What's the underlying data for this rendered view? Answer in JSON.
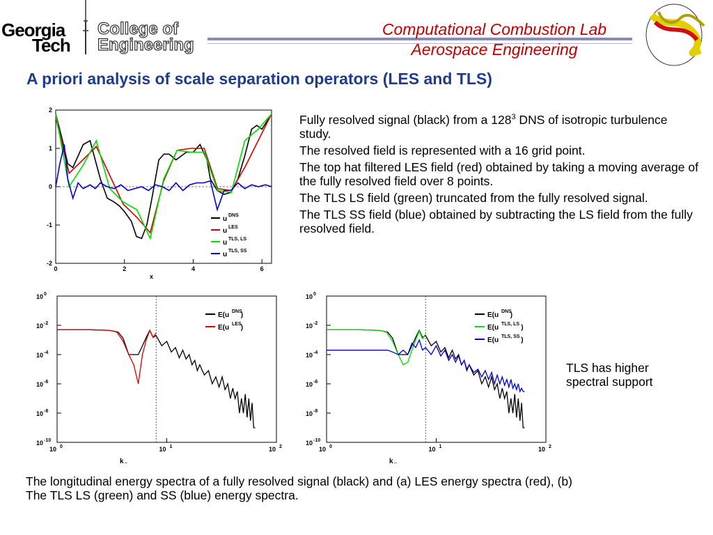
{
  "header": {
    "logo_line1": "Georgia",
    "logo_line2": "Tech",
    "college_line1": "College of",
    "college_line2": "Engineering",
    "lab_line1": "Computational Combustion Lab",
    "lab_line2": "Aerospace Engineering",
    "rule_color": "#8a8ab8"
  },
  "title": "A priori analysis of scale separation operators (LES and TLS)",
  "bullets": [
    {
      "pre": "Fully resolved signal (black) from a 128",
      "sup": "3",
      "post": " DNS of isotropic turbulence study."
    },
    {
      "text": "The resolved field is represented with a 16 grid point."
    },
    {
      "text": "The top hat filtered LES field (red) obtained by taking a moving average of the fully resolved field over 8 points."
    },
    {
      "text": "The TLS LS field (green) truncated from the fully resolved signal."
    },
    {
      "text": "The TLS SS field (blue) obtained by subtracting the LS field from the fully resolved field."
    }
  ],
  "side_note": "TLS has higher spectral support",
  "caption": "The longitudinal energy spectra of a fully resolved signal (black) and (a) LES energy spectra (red), (b) The TLS LS (green) and SS (blue) energy spectra.",
  "chart_data": [
    {
      "type": "line",
      "xlabel": "x",
      "ylabel": "",
      "xlim": [
        0,
        6.28
      ],
      "ylim": [
        -2,
        2
      ],
      "xticks": [
        "0",
        "2",
        "4",
        "6"
      ],
      "yticks": [
        "2",
        "1",
        "0",
        "-1",
        "-2"
      ],
      "legend_position": "bottom-right",
      "series": [
        {
          "name": "u",
          "sup": "DNS",
          "color": "#000000",
          "x": [
            0,
            0.2,
            0.35,
            0.5,
            0.65,
            0.8,
            1.0,
            1.15,
            1.3,
            1.5,
            1.7,
            1.85,
            2.0,
            2.2,
            2.35,
            2.5,
            2.65,
            2.8,
            3.0,
            3.15,
            3.3,
            3.5,
            3.65,
            3.8,
            4.0,
            4.2,
            4.4,
            4.5,
            4.7,
            4.9,
            5.1,
            5.3,
            5.5,
            5.7,
            5.85,
            6.0,
            6.28
          ],
          "y": [
            1.9,
            1.2,
            0.6,
            0.5,
            0.8,
            1.1,
            1.2,
            0.7,
            0.2,
            -0.3,
            -0.4,
            -0.5,
            -0.65,
            -0.9,
            -1.3,
            -1.35,
            -1.0,
            -0.3,
            0.7,
            0.85,
            0.85,
            0.7,
            0.8,
            0.9,
            0.9,
            1.1,
            0.7,
            0.2,
            -0.1,
            -0.2,
            -0.15,
            0.2,
            0.8,
            1.5,
            1.6,
            1.5,
            1.9
          ]
        },
        {
          "name": "u",
          "sup": "LES",
          "color": "#d40000",
          "x": [
            0,
            0.39,
            0.79,
            1.18,
            1.57,
            1.96,
            2.36,
            2.75,
            3.14,
            3.53,
            3.93,
            4.32,
            4.71,
            5.11,
            5.5,
            5.89,
            6.28
          ],
          "y": [
            1.8,
            0.35,
            0.7,
            1.05,
            0.3,
            -0.45,
            -0.8,
            -1.2,
            0.15,
            0.95,
            1.0,
            1.0,
            -0.05,
            -0.1,
            0.5,
            1.2,
            1.9
          ]
        },
        {
          "name": "u",
          "sup": "TLS, LS",
          "color": "#00dd00",
          "x": [
            0,
            0.39,
            0.79,
            1.18,
            1.57,
            1.96,
            2.36,
            2.75,
            3.14,
            3.53,
            3.93,
            4.32,
            4.71,
            5.11,
            5.5,
            5.89,
            6.28
          ],
          "y": [
            1.9,
            0.0,
            0.55,
            1.2,
            -0.05,
            -0.4,
            -0.6,
            -1.35,
            0.2,
            0.95,
            0.9,
            0.9,
            -0.1,
            -0.15,
            1.2,
            1.5,
            1.9
          ]
        },
        {
          "name": "u",
          "sup": "TLS, SS",
          "color": "#0000d0",
          "x": [
            0,
            0.12,
            0.25,
            0.35,
            0.5,
            0.65,
            0.8,
            1.0,
            1.15,
            1.3,
            1.5,
            1.7,
            1.9,
            2.1,
            2.3,
            2.5,
            2.7,
            2.9,
            3.1,
            3.3,
            3.5,
            3.7,
            3.9,
            4.1,
            4.3,
            4.5,
            4.7,
            4.9,
            5.1,
            5.3,
            5.5,
            5.7,
            5.9,
            6.1,
            6.28
          ],
          "y": [
            0.0,
            0.6,
            1.1,
            0.2,
            -0.3,
            0.1,
            -0.05,
            0.05,
            -0.05,
            0.1,
            0.0,
            -0.05,
            0.05,
            -0.1,
            -0.05,
            0.0,
            -0.1,
            0.05,
            0.0,
            -0.1,
            0.1,
            -0.1,
            0.05,
            0.1,
            0.1,
            0.15,
            -0.6,
            -0.1,
            -0.1,
            0.1,
            -0.05,
            0.05,
            0.0,
            0.05,
            0.0
          ]
        }
      ]
    },
    {
      "type": "line",
      "scale": "log-log",
      "xlabel": "k",
      "xlabel_sub": "x",
      "ylabel": "",
      "xlim": [
        1,
        100
      ],
      "ylim": [
        1e-10,
        1
      ],
      "vline": 8,
      "xticks": [
        {
          "b": "10",
          "e": "0"
        },
        {
          "b": "10",
          "e": "1"
        },
        {
          "b": "10",
          "e": "2"
        }
      ],
      "yticks": [
        {
          "b": "10",
          "e": "0"
        },
        {
          "b": "10",
          "e": "-2"
        },
        {
          "b": "10",
          "e": "-4"
        },
        {
          "b": "10",
          "e": "-6"
        },
        {
          "b": "10",
          "e": "-8"
        },
        {
          "b": "10",
          "e": "-10"
        }
      ],
      "legend_position": "top-right",
      "series": [
        {
          "name": "E(u",
          "sup": "DNS",
          "suffix": ")",
          "color": "#000000",
          "x": [
            1,
            2,
            3,
            3.6,
            4,
            4.5,
            5,
            5.5,
            6,
            6.5,
            7,
            7.5,
            8,
            9,
            10,
            11,
            12,
            13,
            14,
            15,
            16,
            17,
            18,
            19,
            20,
            22,
            24,
            26,
            28,
            30,
            32,
            34,
            36,
            38,
            40,
            42,
            44,
            46,
            48,
            50,
            52,
            54,
            56,
            58,
            60,
            62,
            64
          ],
          "y": [
            0.005,
            0.005,
            0.0045,
            0.0035,
            0.0013,
            0.0001,
            0.0001,
            0.0001,
            0.0004,
            0.0015,
            0.0045,
            0.0015,
            0.002,
            0.0004,
            0.0008,
            0.00015,
            0.0003,
            6e-05,
            0.0002,
            5e-05,
            0.0001,
            2e-05,
            4e-05,
            8e-06,
            2e-05,
            4e-06,
            8e-06,
            1e-06,
            3e-06,
            6e-07,
            3e-06,
            4e-07,
            1e-06,
            1e-07,
            5e-07,
            1e-07,
            3e-07,
            1e-08,
            1e-07,
            1e-08,
            2e-07,
            5e-09,
            1e-07,
            3e-09,
            5e-08,
            1e-09,
            1e-09
          ]
        },
        {
          "name": "E(u",
          "sup": "LES",
          "suffix": ")",
          "color": "#d40000",
          "x": [
            1,
            2,
            3,
            3.5,
            4,
            4.5,
            5,
            5.5,
            6,
            6.5,
            7,
            7.5,
            8
          ],
          "y": [
            0.005,
            0.005,
            0.0045,
            0.0035,
            0.0008,
            0.0001,
            2e-05,
            1e-06,
            0.0001,
            0.001,
            0.0045,
            0.0015,
            0.003
          ]
        }
      ]
    },
    {
      "type": "line",
      "scale": "log-log",
      "xlabel": "k",
      "xlabel_sub": "x",
      "ylabel": "",
      "xlim": [
        1,
        100
      ],
      "ylim": [
        1e-10,
        1
      ],
      "vline": 8,
      "xticks": [
        {
          "b": "10",
          "e": "0"
        },
        {
          "b": "10",
          "e": "1"
        },
        {
          "b": "10",
          "e": "2"
        }
      ],
      "yticks": [
        {
          "b": "10",
          "e": "0"
        },
        {
          "b": "10",
          "e": "-2"
        },
        {
          "b": "10",
          "e": "-4"
        },
        {
          "b": "10",
          "e": "-6"
        },
        {
          "b": "10",
          "e": "-8"
        },
        {
          "b": "10",
          "e": "-10"
        }
      ],
      "legend_position": "top-right",
      "series": [
        {
          "name": "E(u",
          "sup": "DNS",
          "suffix": ")",
          "color": "#000000",
          "x": [
            1,
            2,
            3,
            3.6,
            4,
            4.5,
            5,
            5.5,
            6,
            6.5,
            7,
            7.5,
            8,
            9,
            10,
            11,
            12,
            13,
            14,
            15,
            16,
            17,
            18,
            19,
            20,
            22,
            24,
            26,
            28,
            30,
            32,
            34,
            36,
            38,
            40,
            42,
            44,
            46,
            48,
            50,
            52,
            54,
            56,
            58,
            60,
            62,
            64
          ],
          "y": [
            0.005,
            0.005,
            0.0045,
            0.0035,
            0.0013,
            0.0001,
            0.0001,
            0.0001,
            0.0004,
            0.0015,
            0.0045,
            0.0015,
            0.002,
            0.0004,
            0.0008,
            0.00015,
            0.0003,
            6e-05,
            0.0002,
            5e-05,
            0.0001,
            2e-05,
            4e-05,
            8e-06,
            2e-05,
            4e-06,
            8e-06,
            1e-06,
            3e-06,
            6e-07,
            3e-06,
            4e-07,
            1e-06,
            1e-07,
            5e-07,
            1e-07,
            3e-07,
            1e-08,
            1e-07,
            1e-08,
            2e-07,
            5e-09,
            1e-07,
            3e-09,
            5e-08,
            1e-09,
            1e-09
          ]
        },
        {
          "name": "E(u",
          "sup": "TLS, LS",
          "suffix": ")",
          "color": "#00dd00",
          "x": [
            1,
            2,
            3,
            3.5,
            4,
            4.5,
            5,
            5.5,
            6,
            6.5,
            7,
            7.5,
            8
          ],
          "y": [
            0.005,
            0.005,
            0.0045,
            0.0035,
            0.0008,
            0.0001,
            2e-05,
            3e-05,
            0.0002,
            0.001,
            0.004,
            0.0012,
            0.0025
          ]
        },
        {
          "name": "E(u",
          "sup": "TLS, SS",
          "suffix": ")",
          "color": "#0000d0",
          "x": [
            1,
            2,
            3,
            3.6,
            4,
            4.5,
            5,
            5.5,
            6,
            6.5,
            7,
            7.5,
            8,
            9,
            10,
            11,
            12,
            13,
            14,
            15,
            16,
            17,
            18,
            19,
            20,
            22,
            24,
            26,
            28,
            30,
            32,
            34,
            36,
            38,
            40,
            42,
            44,
            46,
            48,
            50,
            52,
            54,
            56,
            58,
            60,
            62,
            64
          ],
          "y": [
            0.0002,
            0.0002,
            0.0002,
            0.0002,
            0.00015,
            0.0001,
            0.0002,
            0.0001,
            0.0006,
            0.0003,
            0.001,
            0.0002,
            0.0003,
            0.0001,
            0.0004,
            8e-05,
            0.0002,
            4e-05,
            0.0001,
            3e-05,
            8e-05,
            2e-05,
            4e-05,
            1e-05,
            2e-05,
            6e-06,
            1e-05,
            3e-06,
            8e-06,
            2e-06,
            6e-06,
            1e-06,
            4e-06,
            1e-06,
            3e-06,
            8e-07,
            2e-06,
            6e-07,
            2e-06,
            5e-07,
            1e-06,
            4e-07,
            1e-06,
            3e-07,
            5e-07,
            3e-07,
            3e-07
          ]
        }
      ]
    }
  ]
}
